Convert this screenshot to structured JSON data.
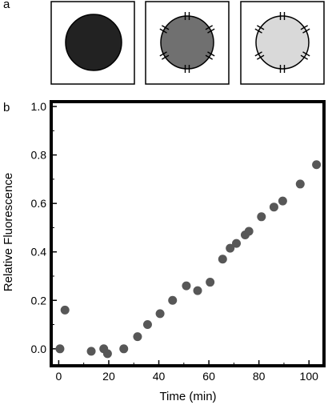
{
  "panels": {
    "a": "a",
    "b": "b"
  },
  "schematic": {
    "circle_fills": [
      "#222222",
      "#707070",
      "#d9d9d9"
    ],
    "pores": [
      false,
      true,
      true
    ]
  },
  "chart_data": {
    "type": "scatter",
    "xlabel": "Time (min)",
    "ylabel": "Relative Fluorescence",
    "xlim": [
      -3,
      106
    ],
    "ylim": [
      -0.07,
      1.02
    ],
    "xticks": [
      0,
      20,
      40,
      60,
      80,
      100
    ],
    "yticks": [
      0.0,
      0.2,
      0.4,
      0.6,
      0.8,
      1.0
    ],
    "xtick_labels": [
      "0",
      "20",
      "40",
      "60",
      "80",
      "100"
    ],
    "ytick_labels": [
      "0.0",
      "0.2",
      "0.4",
      "0.6",
      "0.8",
      "1.0"
    ],
    "marker_color": "#575757",
    "x": [
      0.5,
      2.5,
      13,
      18,
      19.5,
      26,
      31.5,
      35.5,
      40.5,
      45.5,
      51,
      55.5,
      60.5,
      65.5,
      68.5,
      71,
      74.5,
      76,
      81,
      86,
      89.5,
      96.5,
      103
    ],
    "y": [
      0.0,
      0.16,
      -0.01,
      0.0,
      -0.02,
      0.0,
      0.05,
      0.1,
      0.145,
      0.2,
      0.26,
      0.24,
      0.275,
      0.37,
      0.415,
      0.435,
      0.47,
      0.485,
      0.545,
      0.585,
      0.61,
      0.68,
      0.76
    ]
  }
}
